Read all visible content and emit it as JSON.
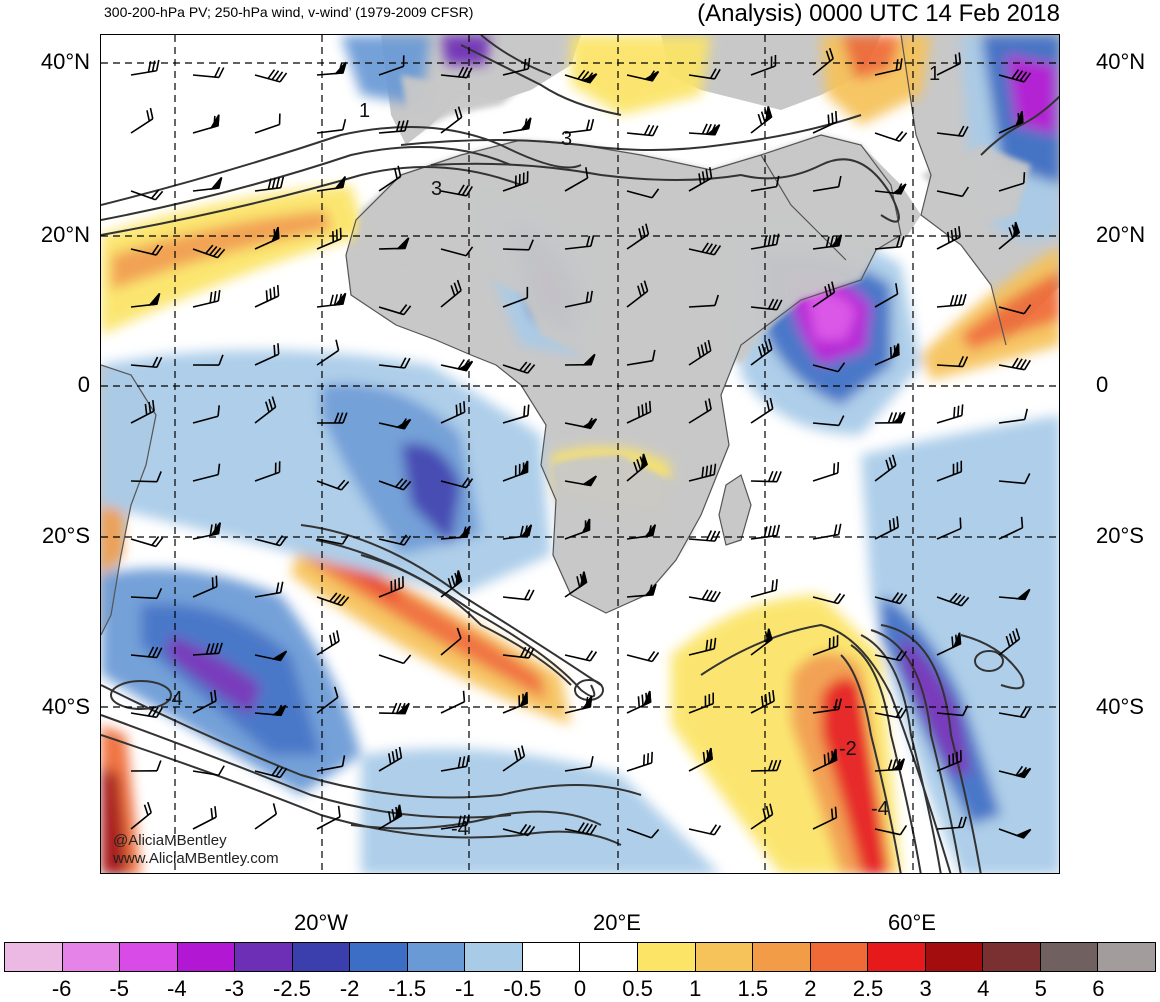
{
  "header": {
    "left_title": "300-200-hPa PV; 250-hPa wind, v-wind’ (1979-2009 CFSR)",
    "right_title": "(Analysis) 0000 UTC 14 Feb 2018"
  },
  "map": {
    "lat_labels": [
      "40°N",
      "20°N",
      "0",
      "20°S",
      "40°S"
    ],
    "lon_labels": [
      "20°W",
      "20°E",
      "60°E"
    ],
    "contour_labels": [
      "1",
      "3",
      "3",
      "-4",
      "-4",
      "-2",
      "-4",
      "1"
    ],
    "credit": [
      "@AliciaMBentley",
      "www.AliciaMBentley.com"
    ],
    "colors": {
      "land": "#c8c8c8",
      "coast": "#555555",
      "grid": "#000000",
      "contour": "#333333",
      "barb": "#000000"
    }
  },
  "colorbar": {
    "labels": [
      "-6",
      "-5",
      "-4",
      "-3",
      "-2.5",
      "-2",
      "-1.5",
      "-1",
      "-0.5",
      "0",
      "0.5",
      "1",
      "1.5",
      "2",
      "2.5",
      "3",
      "4",
      "5",
      "6"
    ],
    "colors": [
      "#ebb9e4",
      "#e583e8",
      "#d94be6",
      "#b217d4",
      "#6e2fb7",
      "#3b3fae",
      "#3d6ec5",
      "#6a9ad6",
      "#a8cbe8",
      "#ffffff",
      "#ffffff",
      "#fbe466",
      "#f6c25a",
      "#f29c48",
      "#ef6a36",
      "#e61a1a",
      "#a30d0d",
      "#7a3030",
      "#706060",
      "#a39c9c"
    ]
  }
}
